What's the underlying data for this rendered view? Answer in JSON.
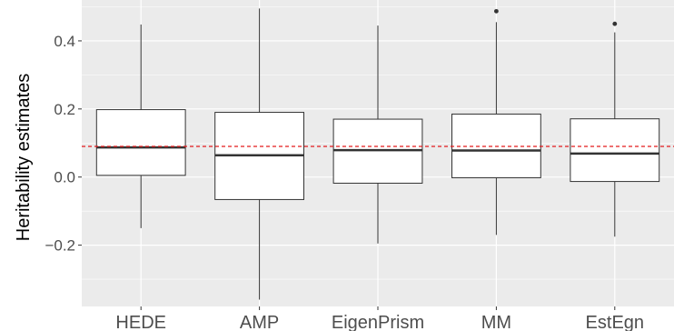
{
  "chart_data": {
    "type": "boxplot",
    "title": "",
    "xlabel": "",
    "ylabel": "Heritability estimates",
    "ylim": [
      -0.36,
      0.52
    ],
    "y_ticks": [
      -0.2,
      0.0,
      0.2,
      0.4
    ],
    "y_tick_labels": [
      "−0.2",
      "0.0",
      "0.2",
      "0.4"
    ],
    "grid": true,
    "reference_line": {
      "y": 0.09,
      "style": "dashed",
      "color": "#e41a1c"
    },
    "categories": [
      "HEDE",
      "AMP",
      "EigenPrism",
      "MM",
      "EstEgn"
    ],
    "boxes": [
      {
        "name": "HEDE",
        "whisker_low": -0.15,
        "q1": 0.005,
        "median": 0.087,
        "q3": 0.198,
        "whisker_high": 0.448,
        "outliers": []
      },
      {
        "name": "AMP",
        "whisker_low": -0.36,
        "q1": -0.066,
        "median": 0.064,
        "q3": 0.19,
        "whisker_high": 0.495,
        "outliers": []
      },
      {
        "name": "EigenPrism",
        "whisker_low": -0.195,
        "q1": -0.018,
        "median": 0.079,
        "q3": 0.17,
        "whisker_high": 0.445,
        "outliers": []
      },
      {
        "name": "MM",
        "whisker_low": -0.17,
        "q1": -0.002,
        "median": 0.078,
        "q3": 0.185,
        "whisker_high": 0.455,
        "outliers": [
          0.487
        ]
      },
      {
        "name": "EstEgn",
        "whisker_low": -0.175,
        "q1": -0.013,
        "median": 0.069,
        "q3": 0.171,
        "whisker_high": 0.425,
        "outliers": [
          0.45
        ]
      }
    ],
    "colors": {
      "panel_background": "#ebebeb",
      "grid_major": "#ffffff",
      "box_fill": "#ffffff",
      "box_stroke": "#333333",
      "reference_line": "#e41a1c"
    }
  }
}
